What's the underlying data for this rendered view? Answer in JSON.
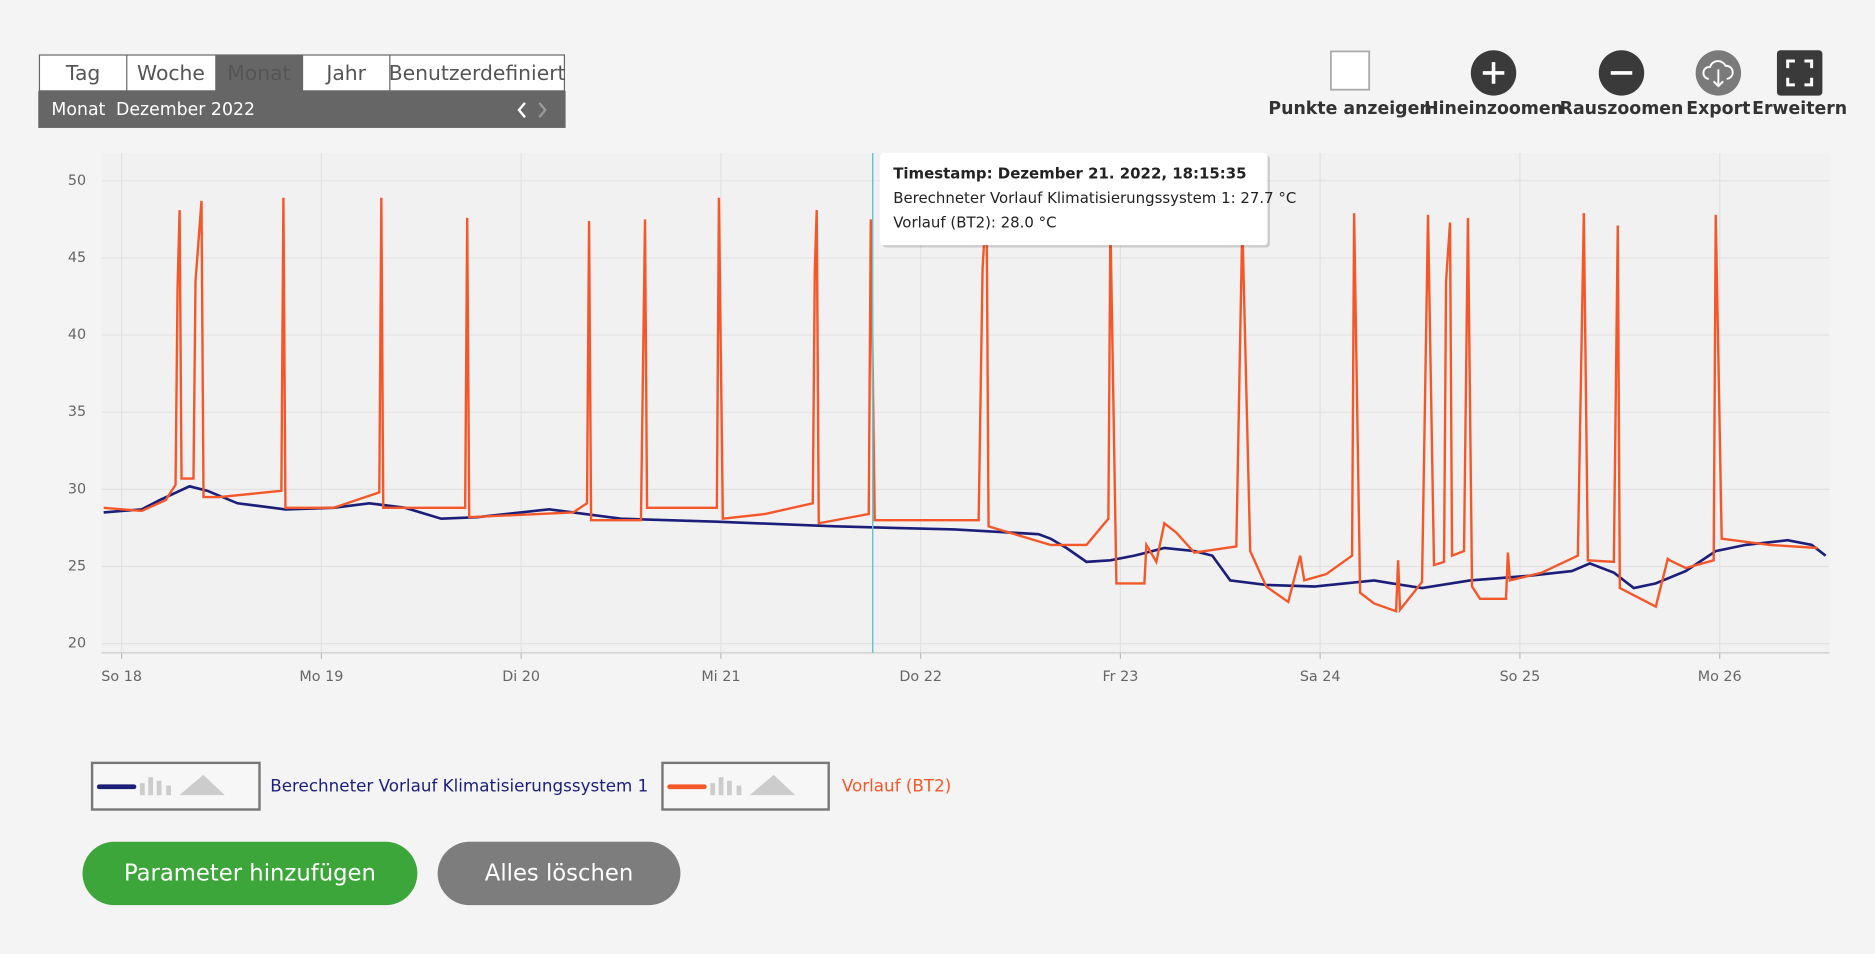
{
  "ui": {
    "tabs": [
      "Tag",
      "Woche",
      "Monat",
      "Jahr",
      "Benutzerdefiniert"
    ],
    "active_tab": 2,
    "period": {
      "label": "Monat",
      "value": "Dezember 2022"
    },
    "toolbar": [
      "Punkte anzeigen",
      "Hineinzoomen",
      "Rauszoomen",
      "Export",
      "Erweitern"
    ],
    "buttons": [
      "Parameter hinzufügen",
      "Alles löschen"
    ]
  },
  "chart_data": {
    "type": "line",
    "tooltip": {
      "x": 21.76,
      "lines": [
        "Timestamp: Dezember 21. 2022, 18:15:35",
        "Berechneter Vorlauf Klimatisierungssystem 1: 27.7 °C",
        "Vorlauf (BT2): 28.0 °C"
      ]
    },
    "xlim": [
      17.9,
      26.55
    ],
    "xticks": [
      {
        "value": 18,
        "label": "So 18"
      },
      {
        "value": 19,
        "label": "Mo 19"
      },
      {
        "value": 20,
        "label": "Di 20"
      },
      {
        "value": 21,
        "label": "Mi 21"
      },
      {
        "value": 22,
        "label": "Do 22"
      },
      {
        "value": 23,
        "label": "Fr 23"
      },
      {
        "value": 24,
        "label": "Sa 24"
      },
      {
        "value": 25,
        "label": "So 25"
      },
      {
        "value": 26,
        "label": "Mo 26"
      }
    ],
    "ylim": [
      19.4,
      51.8
    ],
    "yticks": [
      20,
      25,
      30,
      35,
      40,
      45,
      50
    ],
    "grid": true,
    "series": [
      {
        "name": "Berechneter Vorlauf Klimatisierungssystem 1",
        "color": "#1c1f7a",
        "x": [
          17.91,
          18.1,
          18.19,
          18.34,
          18.43,
          18.58,
          18.82,
          19.06,
          19.24,
          19.42,
          19.6,
          19.78,
          20.14,
          20.26,
          20.5,
          20.98,
          21.57,
          22.17,
          22.59,
          22.65,
          22.73,
          22.83,
          22.95,
          23.07,
          23.22,
          23.37,
          23.46,
          23.55,
          23.73,
          23.97,
          24.27,
          24.36,
          24.51,
          24.75,
          25.05,
          25.26,
          25.35,
          25.47,
          25.57,
          25.68,
          25.83,
          25.98,
          26.13,
          26.34,
          26.46,
          26.53
        ],
        "values": [
          28.5,
          28.7,
          29.3,
          30.2,
          29.9,
          29.1,
          28.7,
          28.8,
          29.1,
          28.8,
          28.1,
          28.2,
          28.7,
          28.5,
          28.1,
          27.9,
          27.6,
          27.4,
          27.1,
          26.8,
          26.2,
          25.3,
          25.4,
          25.7,
          26.2,
          26.0,
          25.7,
          24.1,
          23.8,
          23.7,
          24.1,
          23.9,
          23.6,
          24.1,
          24.4,
          24.7,
          25.2,
          24.6,
          23.6,
          23.9,
          24.7,
          26.0,
          26.4,
          26.7,
          26.4,
          25.7
        ]
      },
      {
        "name": "Vorlauf (BT2)",
        "color": "#f4582a",
        "x": [
          17.91,
          18.1,
          18.22,
          18.27,
          18.28,
          18.29,
          18.3,
          18.36,
          18.37,
          18.4,
          18.41,
          18.49,
          18.8,
          18.81,
          18.82,
          19.06,
          19.29,
          19.3,
          19.31,
          19.72,
          19.73,
          19.74,
          20.26,
          20.33,
          20.34,
          20.35,
          20.6,
          20.62,
          20.63,
          20.98,
          20.99,
          21.01,
          21.22,
          21.46,
          21.47,
          21.48,
          21.49,
          21.74,
          21.75,
          21.77,
          22.29,
          22.31,
          22.33,
          22.34,
          22.65,
          22.83,
          22.94,
          22.95,
          22.98,
          23.12,
          23.13,
          23.18,
          23.22,
          23.28,
          23.37,
          23.58,
          23.61,
          23.65,
          23.73,
          23.84,
          23.9,
          23.92,
          24.03,
          24.16,
          24.17,
          24.2,
          24.27,
          24.38,
          24.39,
          24.4,
          24.51,
          24.54,
          24.57,
          24.62,
          24.63,
          24.65,
          24.66,
          24.72,
          24.74,
          24.76,
          24.8,
          24.93,
          24.94,
          24.95,
          25.11,
          25.29,
          25.32,
          25.34,
          25.47,
          25.49,
          25.5,
          25.68,
          25.74,
          25.75,
          25.83,
          25.97,
          25.98,
          26.01,
          26.25,
          26.49
        ],
        "values": [
          28.8,
          28.6,
          29.3,
          30.3,
          43.1,
          48.1,
          30.7,
          30.7,
          43.5,
          48.7,
          29.5,
          29.5,
          29.9,
          48.9,
          28.8,
          28.8,
          29.8,
          48.9,
          28.8,
          28.8,
          47.6,
          28.2,
          28.5,
          29.1,
          47.4,
          28.0,
          28.0,
          47.5,
          28.8,
          28.8,
          48.9,
          28.1,
          28.4,
          29.1,
          44.3,
          48.1,
          27.8,
          28.4,
          47.5,
          28.0,
          28.0,
          44.3,
          48.9,
          27.6,
          26.4,
          26.4,
          28.1,
          47.3,
          23.9,
          23.9,
          26.4,
          25.3,
          27.8,
          27.2,
          25.9,
          26.3,
          47.3,
          26.0,
          23.7,
          22.7,
          25.7,
          24.1,
          24.5,
          25.7,
          47.9,
          23.3,
          22.6,
          22.1,
          25.4,
          22.2,
          24.0,
          47.8,
          25.1,
          25.3,
          43.5,
          47.3,
          25.7,
          26.0,
          47.6,
          23.7,
          22.9,
          22.9,
          25.9,
          24.1,
          24.6,
          25.7,
          47.9,
          25.4,
          25.3,
          47.1,
          23.6,
          22.4,
          25.5,
          25.4,
          24.9,
          25.4,
          47.8,
          26.8,
          26.4,
          26.2
        ]
      }
    ]
  }
}
